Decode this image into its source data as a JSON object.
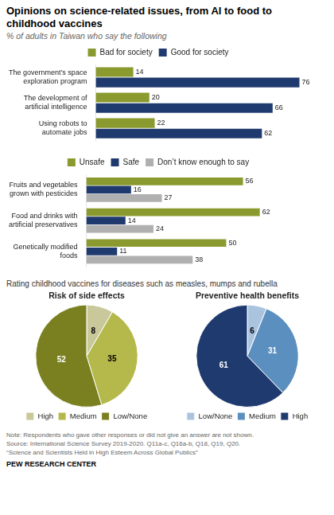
{
  "chart_data": [
    {
      "type": "bar",
      "title": "Opinions on science-related issues, from AI to food to\nchildhood vaccines",
      "subtitle": "% of adults in Taiwan who say the following",
      "orientation": "horizontal",
      "categories": [
        "The government’s space\nexploration program",
        "The development of\nartificial intelligence",
        "Using robots to\nautomate jobs"
      ],
      "series": [
        {
          "name": "Bad for society",
          "color": "#8a9a2e",
          "values": [
            14,
            20,
            22
          ]
        },
        {
          "name": "Good for society",
          "color": "#1f3a6e",
          "values": [
            76,
            66,
            62
          ]
        }
      ],
      "xlim": [
        0,
        80
      ],
      "grid": false,
      "legend": "top",
      "data_labels": true,
      "tick_labels": "y"
    },
    {
      "type": "bar",
      "orientation": "horizontal",
      "categories": [
        "Fruits and vegetables\ngrown with pesticides",
        "Food and drinks with\nartificial preservatives",
        "Genetically modified\nfoods"
      ],
      "series": [
        {
          "name": "Unsafe",
          "color": "#8a9a2e",
          "values": [
            56,
            62,
            50
          ]
        },
        {
          "name": "Safe",
          "color": "#1f3a6e",
          "values": [
            16,
            14,
            11
          ]
        },
        {
          "name": "Don’t know\nenough to say",
          "color": "#b0b0b0",
          "values": [
            27,
            24,
            38
          ]
        }
      ],
      "xlim": [
        0,
        80
      ],
      "grid": false,
      "legend": "top",
      "data_labels": true,
      "tick_labels": "y"
    },
    {
      "type": "pie",
      "subtitle": "Rating childhood vaccines for diseases such as measles, mumps and rubella",
      "title": "Risk of side effects",
      "categories": [
        "High",
        "Medium",
        "Low/None"
      ],
      "values": [
        8,
        35,
        52
      ],
      "colors": [
        "#c8c89a",
        "#b5b84a",
        "#7a8020"
      ],
      "legend": "bottom",
      "data_labels": true
    },
    {
      "type": "pie",
      "title": "Preventive health benefits",
      "categories": [
        "Low/None",
        "Medium",
        "High"
      ],
      "values": [
        6,
        31,
        61
      ],
      "colors": [
        "#aac4e0",
        "#5b8fbf",
        "#1f3a6e"
      ],
      "legend": "bottom",
      "data_labels": true,
      "annotations": [
        "Note: Respondents who gave other responses or did not give an answer are not shown.\nSource: International Science Survey 2019-2020. Q11a-c, Q16a-b, Q18, Q19, Q20.\n“Science and Scientists Held in High Esteem Across Global Publics”",
        "PEW RESEARCH CENTER"
      ]
    }
  ]
}
